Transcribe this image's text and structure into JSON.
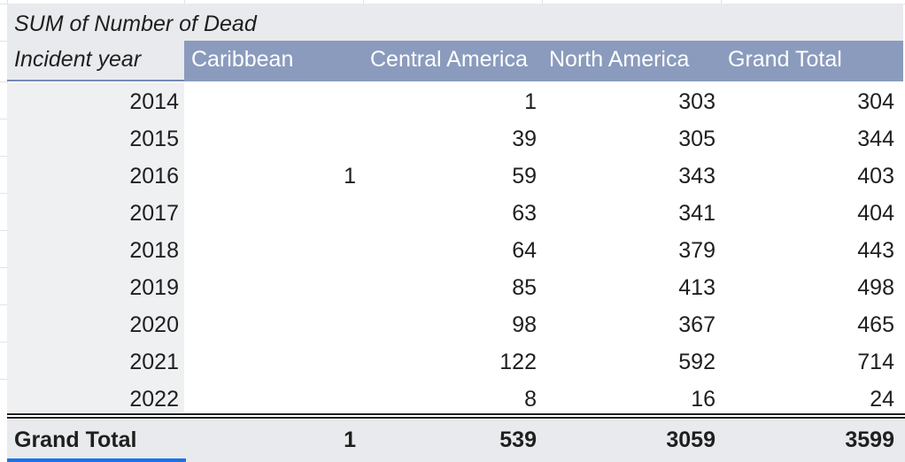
{
  "pivot": {
    "title": "SUM of Number of Dead",
    "row_header": "Incident year",
    "columns": [
      "Caribbean",
      "Central America",
      "North America",
      "Grand Total"
    ],
    "rows": [
      {
        "year": "2014",
        "caribbean": "",
        "central_america": "1",
        "north_america": "303",
        "grand_total": "304"
      },
      {
        "year": "2015",
        "caribbean": "",
        "central_america": "39",
        "north_america": "305",
        "grand_total": "344"
      },
      {
        "year": "2016",
        "caribbean": "1",
        "central_america": "59",
        "north_america": "343",
        "grand_total": "403"
      },
      {
        "year": "2017",
        "caribbean": "",
        "central_america": "63",
        "north_america": "341",
        "grand_total": "404"
      },
      {
        "year": "2018",
        "caribbean": "",
        "central_america": "64",
        "north_america": "379",
        "grand_total": "443"
      },
      {
        "year": "2019",
        "caribbean": "",
        "central_america": "85",
        "north_america": "413",
        "grand_total": "498"
      },
      {
        "year": "2020",
        "caribbean": "",
        "central_america": "98",
        "north_america": "367",
        "grand_total": "465"
      },
      {
        "year": "2021",
        "caribbean": "",
        "central_america": "122",
        "north_america": "592",
        "grand_total": "714"
      },
      {
        "year": "2022",
        "caribbean": "",
        "central_america": "8",
        "north_america": "16",
        "grand_total": "24"
      }
    ],
    "grand_total": {
      "label": "Grand Total",
      "caribbean": "1",
      "central_america": "539",
      "north_america": "3059",
      "grand_total": "3599"
    }
  },
  "colors": {
    "header_band": "#8a9bbd",
    "header_text": "#ffffff",
    "title_bg": "#e8eaed",
    "label_col_bg": "#eef0f2",
    "selection": "#1a73e8"
  }
}
